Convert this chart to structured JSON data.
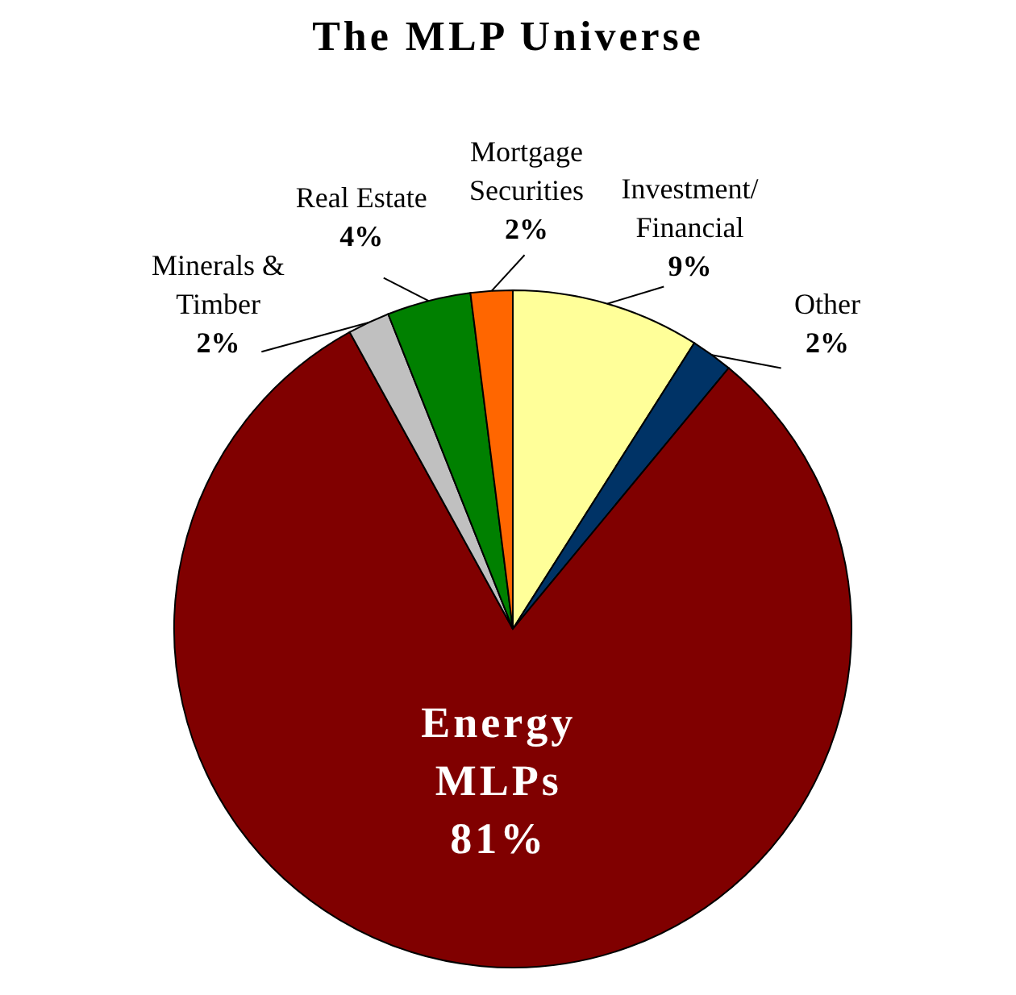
{
  "chart_data": {
    "type": "pie",
    "title": "The MLP Universe",
    "categories": [
      "Investment/Financial",
      "Other",
      "Energy MLPs",
      "Minerals & Timber",
      "Real Estate",
      "Mortgage Securities"
    ],
    "values": [
      9,
      2,
      81,
      2,
      4,
      2
    ],
    "value_labels": [
      "9%",
      "2%",
      "81%",
      "2%",
      "4%",
      "2%"
    ],
    "colors": [
      "#ffff99",
      "#003366",
      "#800000",
      "#c0c0c0",
      "#008000",
      "#ff6600"
    ],
    "legend": false
  }
}
